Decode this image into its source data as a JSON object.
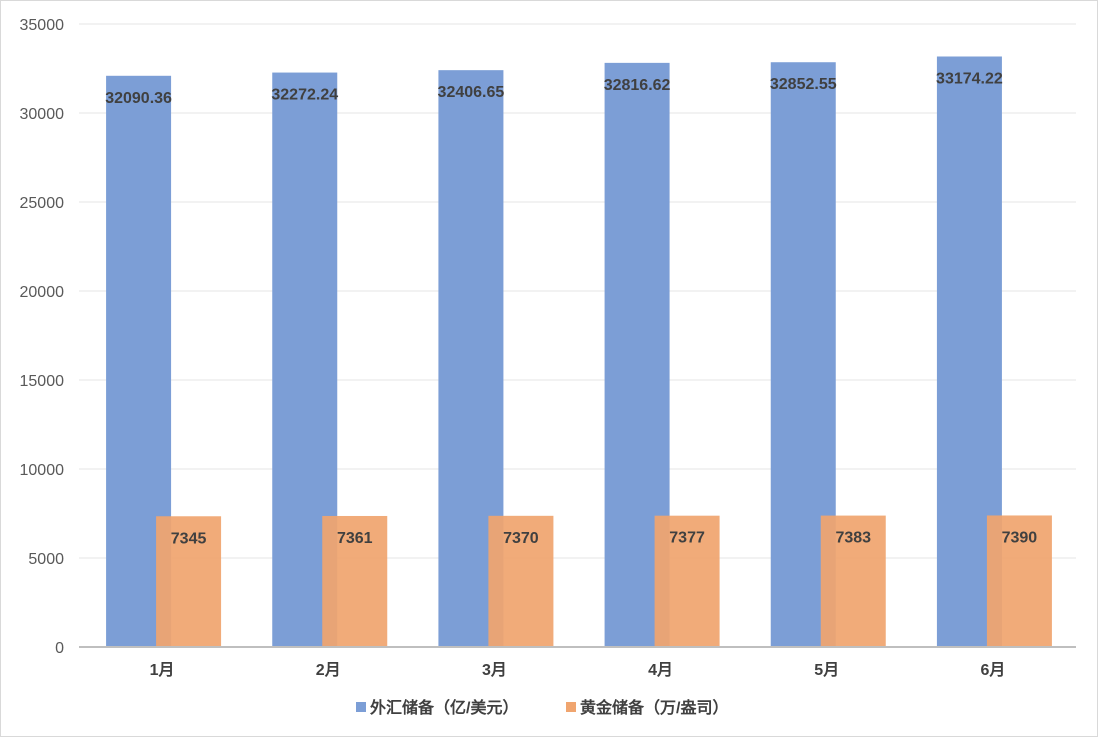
{
  "chart_data": {
    "type": "bar",
    "title": "",
    "xlabel": "",
    "ylabel": "",
    "categories": [
      "1月",
      "2月",
      "3月",
      "4月",
      "5月",
      "6月"
    ],
    "series": [
      {
        "name": "外汇储备（亿/美元）",
        "values": [
          32090.36,
          32272.24,
          32406.65,
          32816.62,
          32852.55,
          33174.22
        ],
        "color": "#7c9ed6"
      },
      {
        "name": "黄金储备（万/盎司）",
        "values": [
          7345,
          7361,
          7370,
          7377,
          7383,
          7390
        ],
        "color": "#f0a56f"
      }
    ],
    "ylim": [
      0,
      35000
    ],
    "yticks": [
      0,
      5000,
      10000,
      15000,
      20000,
      25000,
      30000,
      35000
    ],
    "grid": true,
    "legend": "bottom"
  }
}
